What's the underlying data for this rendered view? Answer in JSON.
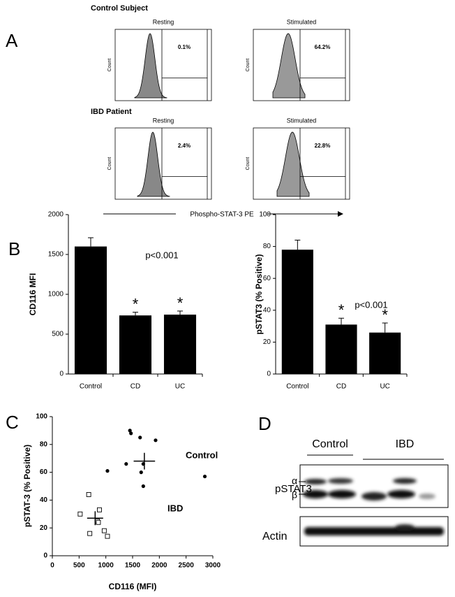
{
  "panel_a": {
    "label": "A",
    "x_label": "Phospho-STAT-3 PE",
    "y_label": "Count",
    "rows": [
      {
        "title": "Control Subject",
        "plots": [
          {
            "condition": "Resting",
            "percent": "0.1%"
          },
          {
            "condition": "Stimulated",
            "percent": "64.2%"
          }
        ]
      },
      {
        "title": "IBD Patient",
        "plots": [
          {
            "condition": "Resting",
            "percent": "2.4%"
          },
          {
            "condition": "Stimulated",
            "percent": "22.8%"
          }
        ]
      }
    ]
  },
  "chart_data": [
    {
      "type": "bar",
      "panel_label": "B",
      "y_label": "CD116 MFI",
      "categories": [
        "Control",
        "CD",
        "UC"
      ],
      "values": [
        1600,
        735,
        745
      ],
      "errors": [
        110,
        40,
        45
      ],
      "color": "#000000",
      "ylim": [
        0,
        2000
      ],
      "yticks": [
        0,
        500,
        1000,
        1500,
        2000
      ],
      "star_labels": [
        null,
        "*",
        "*"
      ],
      "annotation": "p<0.001"
    },
    {
      "type": "bar",
      "y_label": "pSTAT3 (% Positive)",
      "categories": [
        "Control",
        "CD",
        "UC"
      ],
      "values": [
        78,
        31,
        26
      ],
      "errors": [
        6,
        4,
        6
      ],
      "color": "#000000",
      "ylim": [
        0,
        100
      ],
      "yticks": [
        0,
        20,
        40,
        60,
        80,
        100
      ],
      "star_labels": [
        null,
        "*",
        "*"
      ],
      "annotation": "p<0.001"
    },
    {
      "type": "scatter",
      "panel_label": "C",
      "x_label": "CD116 (MFI)",
      "y_label": "pSTAT-3 (% Positive)",
      "xlim": [
        0,
        3000
      ],
      "xticks": [
        0,
        500,
        1000,
        1500,
        2000,
        2500,
        3000
      ],
      "ylim": [
        0,
        100
      ],
      "yticks": [
        0,
        20,
        40,
        60,
        80,
        100
      ],
      "series": [
        {
          "name": "Control",
          "color": "#000000",
          "marker": "circle",
          "x": [
            1450,
            1470,
            1640,
            1930,
            1380,
            1700,
            1660,
            1700,
            1030,
            2850
          ],
          "values": [
            90,
            88,
            85,
            83,
            66,
            66,
            60,
            50,
            61,
            57
          ],
          "mean": {
            "x": 1720,
            "y": 68,
            "xerr": 200,
            "yerr": 6
          }
        },
        {
          "name": "IBD",
          "color": "#000000",
          "marker": "open-square",
          "x": [
            680,
            520,
            880,
            840,
            860,
            700,
            970,
            1030
          ],
          "values": [
            44,
            30,
            33,
            25,
            24,
            16,
            18,
            14
          ],
          "mean": {
            "x": 800,
            "y": 27,
            "xerr": 150,
            "yerr": 5
          }
        }
      ]
    }
  ],
  "panel_d": {
    "label": "D",
    "groups": [
      "Control",
      "IBD"
    ],
    "blot_label": "pSTAT3",
    "alpha": "α",
    "beta": "β",
    "loading_label": "Actin"
  }
}
